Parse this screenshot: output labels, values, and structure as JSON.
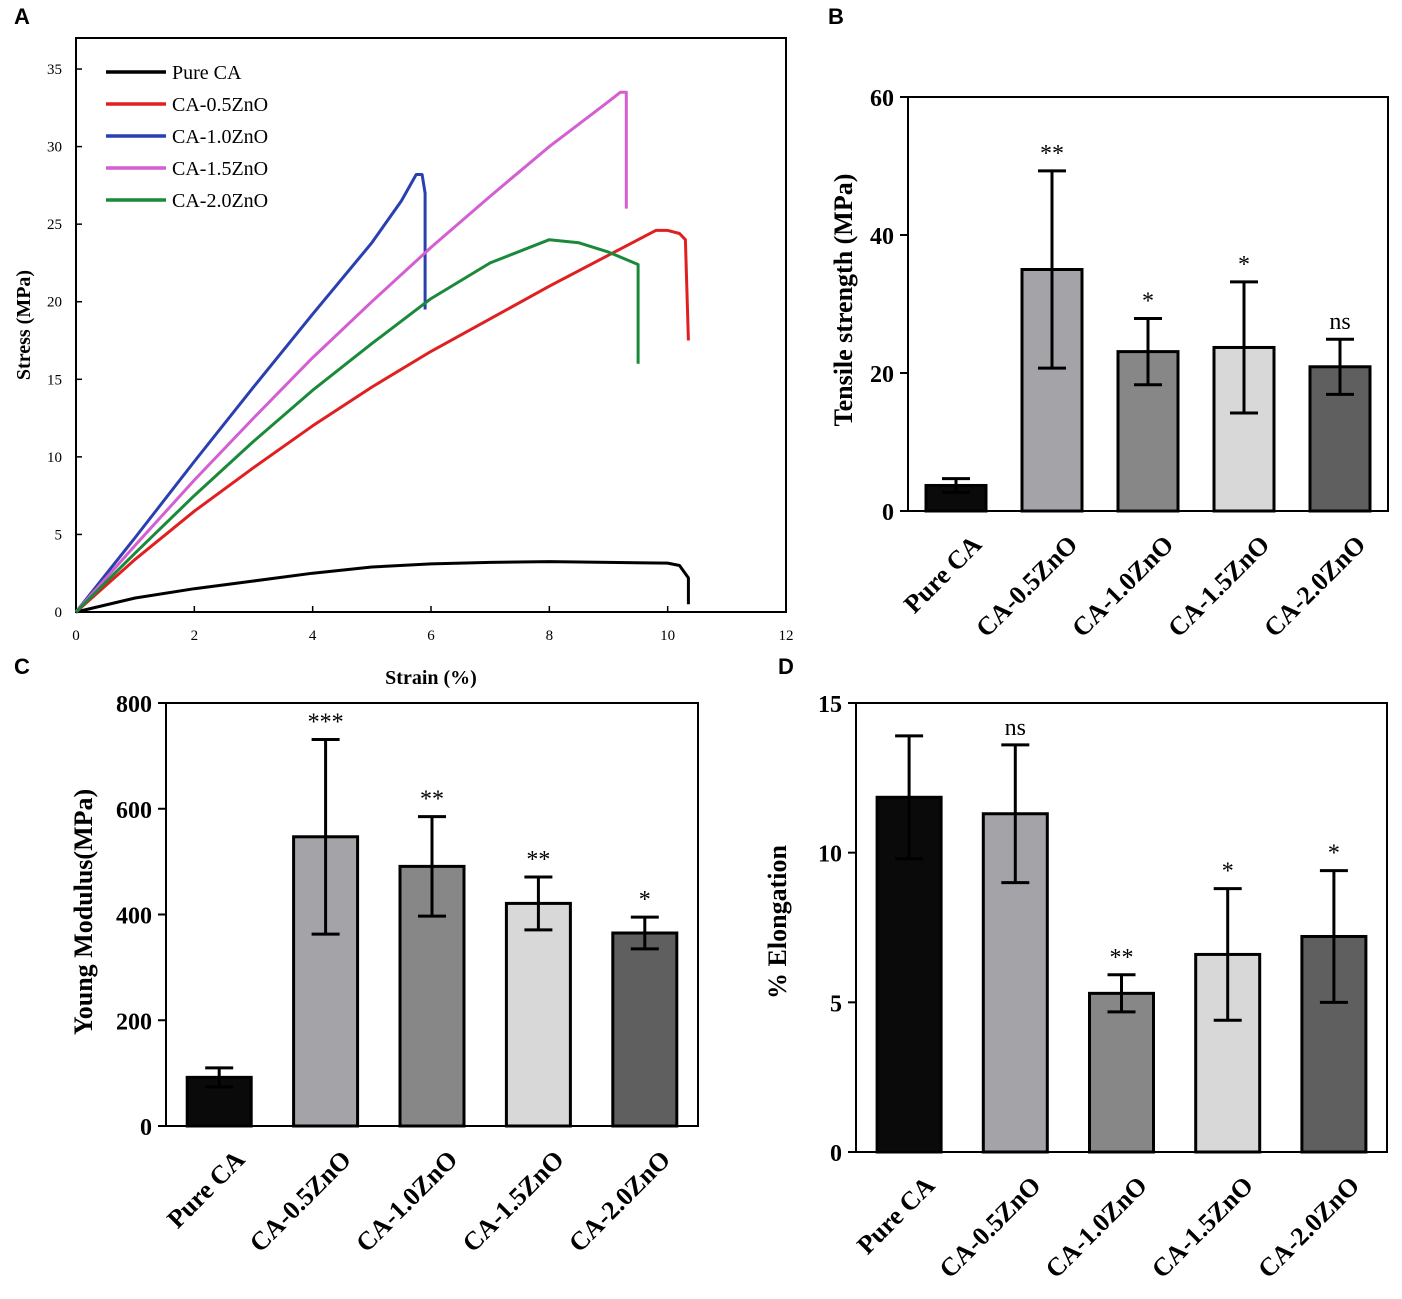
{
  "chart_data": [
    {
      "panel": "A",
      "type": "line",
      "xlabel": "Strain (%)",
      "ylabel": "Stress (MPa)",
      "xlim": [
        0,
        12
      ],
      "ylim": [
        0,
        37
      ],
      "xticks": [
        0,
        2,
        4,
        6,
        8,
        10,
        12
      ],
      "yticks": [
        0,
        5,
        10,
        15,
        20,
        25,
        30,
        35
      ],
      "legend_position": "top-left",
      "series": [
        {
          "name": "Pure CA",
          "color": "#000000",
          "points": [
            [
              0,
              0
            ],
            [
              1,
              0.9
            ],
            [
              2,
              1.5
            ],
            [
              3,
              2.0
            ],
            [
              4,
              2.5
            ],
            [
              5,
              2.9
            ],
            [
              6,
              3.1
            ],
            [
              7,
              3.2
            ],
            [
              8,
              3.25
            ],
            [
              9,
              3.2
            ],
            [
              10,
              3.15
            ],
            [
              10.2,
              3.0
            ],
            [
              10.35,
              2.2
            ],
            [
              10.35,
              0.5
            ]
          ]
        },
        {
          "name": "CA-0.5ZnO",
          "color": "#e02020",
          "points": [
            [
              0,
              0
            ],
            [
              1,
              3.4
            ],
            [
              2,
              6.5
            ],
            [
              3,
              9.3
            ],
            [
              4,
              12.0
            ],
            [
              5,
              14.5
            ],
            [
              6,
              16.8
            ],
            [
              7,
              18.9
            ],
            [
              8,
              21.0
            ],
            [
              9,
              23.0
            ],
            [
              9.5,
              24.0
            ],
            [
              9.8,
              24.6
            ],
            [
              10,
              24.6
            ],
            [
              10.2,
              24.4
            ],
            [
              10.3,
              24.0
            ],
            [
              10.35,
              17.5
            ]
          ]
        },
        {
          "name": "CA-1.0ZnO",
          "color": "#2a3fb0",
          "points": [
            [
              0,
              0
            ],
            [
              1,
              4.8
            ],
            [
              2,
              9.7
            ],
            [
              3,
              14.5
            ],
            [
              4,
              19.2
            ],
            [
              5,
              23.8
            ],
            [
              5.5,
              26.5
            ],
            [
              5.75,
              28.2
            ],
            [
              5.85,
              28.2
            ],
            [
              5.9,
              27.0
            ],
            [
              5.9,
              19.5
            ]
          ]
        },
        {
          "name": "CA-1.5ZnO",
          "color": "#d35fd3",
          "points": [
            [
              0,
              0
            ],
            [
              1,
              4.3
            ],
            [
              2,
              8.5
            ],
            [
              3,
              12.5
            ],
            [
              4,
              16.4
            ],
            [
              5,
              20.0
            ],
            [
              6,
              23.5
            ],
            [
              7,
              26.8
            ],
            [
              8,
              30.0
            ],
            [
              9,
              32.9
            ],
            [
              9.2,
              33.5
            ],
            [
              9.3,
              33.5
            ],
            [
              9.3,
              26.0
            ]
          ]
        },
        {
          "name": "CA-2.0ZnO",
          "color": "#1a8a3a",
          "points": [
            [
              0,
              0
            ],
            [
              1,
              3.8
            ],
            [
              2,
              7.5
            ],
            [
              3,
              11.0
            ],
            [
              4,
              14.3
            ],
            [
              5,
              17.3
            ],
            [
              6,
              20.2
            ],
            [
              7,
              22.5
            ],
            [
              8,
              24.0
            ],
            [
              8.5,
              23.8
            ],
            [
              9,
              23.2
            ],
            [
              9.5,
              22.4
            ],
            [
              9.5,
              16.0
            ]
          ]
        }
      ]
    },
    {
      "panel": "B",
      "type": "bar",
      "ylabel": "Tensile strength (MPa)",
      "ylim": [
        0,
        60
      ],
      "yticks": [
        0,
        20,
        40,
        60
      ],
      "categories": [
        "Pure CA",
        "CA-0.5ZnO",
        "CA-1.0ZnO",
        "CA-1.5ZnO",
        "CA-2.0ZnO"
      ],
      "values": [
        3.7,
        35.0,
        23.1,
        23.7,
        20.9
      ],
      "errors": [
        1.0,
        14.3,
        4.8,
        9.5,
        4.0
      ],
      "significance": [
        "",
        "**",
        "*",
        "*",
        "ns"
      ],
      "colors": [
        "#0a0a0a",
        "#a3a3a8",
        "#878787",
        "#d8d8d8",
        "#5f5f5f"
      ]
    },
    {
      "panel": "C",
      "type": "bar",
      "ylabel": "Young Modulus(MPa)",
      "ylim": [
        0,
        800
      ],
      "yticks": [
        0,
        200,
        400,
        600,
        800
      ],
      "categories": [
        "Pure CA",
        "CA-0.5ZnO",
        "CA-1.0ZnO",
        "CA-1.5ZnO",
        "CA-2.0ZnO"
      ],
      "values": [
        92,
        547,
        491,
        421,
        365
      ],
      "errors": [
        18,
        184,
        94,
        50,
        30
      ],
      "significance": [
        "",
        "***",
        "**",
        "**",
        "*"
      ],
      "colors": [
        "#0a0a0a",
        "#a3a3a8",
        "#878787",
        "#d8d8d8",
        "#5f5f5f"
      ]
    },
    {
      "panel": "D",
      "type": "bar",
      "ylabel": "% Elongation",
      "ylim": [
        0,
        15
      ],
      "yticks": [
        0,
        5,
        10,
        15
      ],
      "categories": [
        "Pure CA",
        "CA-0.5ZnO",
        "CA-1.0ZnO",
        "CA-1.5ZnO",
        "CA-2.0ZnO"
      ],
      "values": [
        11.85,
        11.3,
        5.3,
        6.6,
        7.2
      ],
      "errors": [
        2.05,
        2.3,
        0.62,
        2.2,
        2.2
      ],
      "significance": [
        "",
        "ns",
        "**",
        "*",
        "*"
      ],
      "colors": [
        "#0a0a0a",
        "#a3a3a8",
        "#878787",
        "#d8d8d8",
        "#5f5f5f"
      ]
    }
  ]
}
